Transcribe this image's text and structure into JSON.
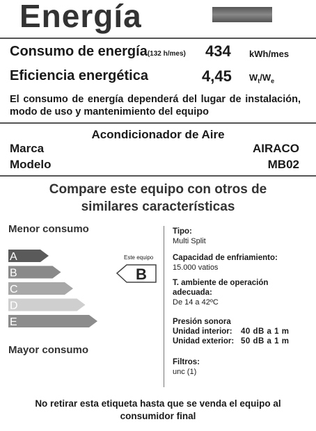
{
  "header": {
    "title": "Energía"
  },
  "consumption": {
    "label": "Consumo de energía",
    "hours": "(132 h/mes)",
    "value": "434",
    "unit": "kWh/mes"
  },
  "efficiency": {
    "label": "Eficiencia energética",
    "value": "4,45",
    "unit_parts": [
      "W",
      "t",
      "/W",
      "e"
    ]
  },
  "note": "El consumo de energía dependerá del lugar de instalación, modo de uso y mantenimiento del equipo",
  "product": {
    "name": "Acondicionador de Aire",
    "brand_label": "Marca",
    "brand": "AIRACO",
    "model_label": "Modelo",
    "model": "MB02"
  },
  "compare": "Compare este equipo con otros de similares características",
  "scale": {
    "best_label": "Menor consumo",
    "worst_label": "Mayor consumo",
    "classes": [
      "A",
      "B",
      "C",
      "D",
      "E"
    ],
    "pointer_label": "Este equipo",
    "pointer_class": "B"
  },
  "specs": [
    {
      "label": "Tipo:",
      "value": "Multi Split"
    },
    {
      "label": "Capacidad de enfriamiento:",
      "value": "15.000 vatios"
    },
    {
      "label": "T. ambiente de operación adecuada:",
      "value": "De 14 a 42ºC"
    },
    {
      "label": "Presión sonora",
      "rows": [
        [
          "Unidad interior:",
          "40 dB a 1 m"
        ],
        [
          "Unidad exterior:",
          "50 dB a 1 m"
        ]
      ]
    },
    {
      "label": "Filtros:",
      "value": "unc (1)"
    }
  ],
  "footer": "No retirar esta etiqueta hasta que se venda el equipo al consumidor final"
}
